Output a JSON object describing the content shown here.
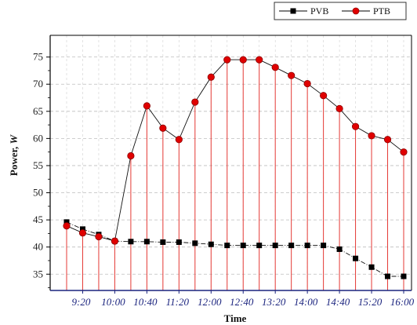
{
  "chart_data": {
    "type": "line",
    "title": "",
    "xlabel": "Time",
    "ylabel_main": "Power, ",
    "ylabel_unit": "W",
    "ylim": [
      32,
      79
    ],
    "yticks": [
      35,
      40,
      45,
      50,
      55,
      60,
      65,
      70,
      75
    ],
    "categories": [
      "9:00",
      "9:20",
      "9:40",
      "10:00",
      "10:20",
      "10:40",
      "11:00",
      "11:20",
      "11:40",
      "12:00",
      "12:20",
      "12:40",
      "13:00",
      "13:20",
      "13:40",
      "14:00",
      "14:20",
      "14:40",
      "15:00",
      "15:20",
      "15:40",
      "16:00"
    ],
    "x_tick_labels": [
      "9:20",
      "10:00",
      "10:40",
      "11:20",
      "12:00",
      "12:40",
      "13:20",
      "14:00",
      "14:40",
      "15:20",
      "16:00"
    ],
    "grid": "dashed horizontal gridlines",
    "legend_position": "top-right",
    "series": [
      {
        "name": "PVB",
        "color": "#000000",
        "marker": "square",
        "values": [
          44.6,
          43.3,
          42.3,
          41.1,
          41.0,
          41.0,
          40.9,
          40.9,
          40.7,
          40.5,
          40.3,
          40.3,
          40.3,
          40.3,
          40.3,
          40.3,
          40.3,
          39.6,
          37.9,
          36.3,
          34.6,
          34.6
        ]
      },
      {
        "name": "PTB",
        "color": "#d50000",
        "marker": "circle",
        "values": [
          43.9,
          42.6,
          41.9,
          41.1,
          56.8,
          66.0,
          61.9,
          59.8,
          66.7,
          71.3,
          74.5,
          74.5,
          74.5,
          73.1,
          71.6,
          70.1,
          67.9,
          65.5,
          62.2,
          60.5,
          59.8,
          57.5
        ]
      }
    ]
  }
}
